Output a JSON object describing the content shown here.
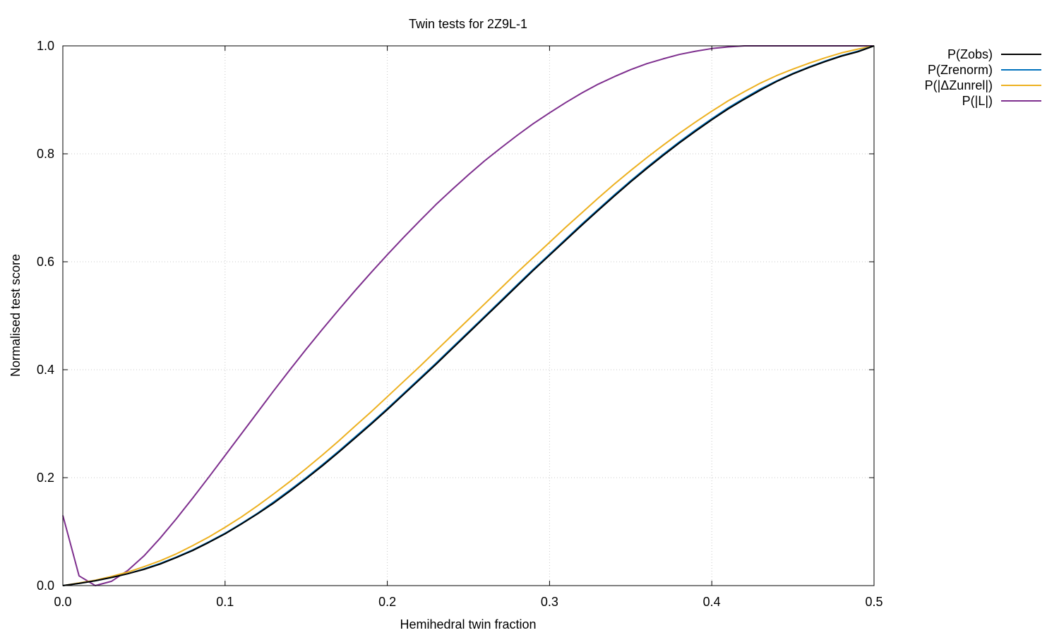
{
  "chart_data": {
    "type": "line",
    "title": "Twin tests for 2Z9L-1",
    "xlabel": "Hemihedral twin fraction",
    "ylabel": "Normalised test score",
    "xlim": [
      0.0,
      0.5
    ],
    "ylim": [
      0.0,
      1.0
    ],
    "xticks": [
      "0.0",
      "0.1",
      "0.2",
      "0.3",
      "0.4",
      "0.5"
    ],
    "yticks": [
      "0.0",
      "0.2",
      "0.4",
      "0.6",
      "0.8",
      "1.0"
    ],
    "grid": true,
    "legend_position": "outside-top-right",
    "x": [
      0.0,
      0.01,
      0.02,
      0.03,
      0.04,
      0.05,
      0.06,
      0.07,
      0.08,
      0.09,
      0.1,
      0.11,
      0.12,
      0.13,
      0.14,
      0.15,
      0.16,
      0.17,
      0.18,
      0.19,
      0.2,
      0.21,
      0.22,
      0.23,
      0.24,
      0.25,
      0.26,
      0.27,
      0.28,
      0.29,
      0.3,
      0.31,
      0.32,
      0.33,
      0.34,
      0.35,
      0.36,
      0.37,
      0.38,
      0.39,
      0.4,
      0.41,
      0.42,
      0.43,
      0.44,
      0.45,
      0.46,
      0.47,
      0.48,
      0.49,
      0.5
    ],
    "series": [
      {
        "name": "P(Zobs)",
        "color": "#000000",
        "values": [
          0.0,
          0.004,
          0.009,
          0.015,
          0.022,
          0.03,
          0.04,
          0.052,
          0.065,
          0.08,
          0.096,
          0.114,
          0.133,
          0.153,
          0.175,
          0.198,
          0.222,
          0.247,
          0.273,
          0.299,
          0.326,
          0.354,
          0.382,
          0.41,
          0.439,
          0.468,
          0.497,
          0.526,
          0.555,
          0.584,
          0.612,
          0.64,
          0.668,
          0.695,
          0.722,
          0.748,
          0.773,
          0.797,
          0.82,
          0.842,
          0.863,
          0.883,
          0.901,
          0.918,
          0.934,
          0.948,
          0.96,
          0.971,
          0.981,
          0.989,
          1.0
        ]
      },
      {
        "name": "P(Zrenorm)",
        "color": "#0072bd",
        "values": [
          0.0,
          0.004,
          0.009,
          0.015,
          0.022,
          0.031,
          0.041,
          0.053,
          0.066,
          0.081,
          0.097,
          0.115,
          0.134,
          0.155,
          0.177,
          0.2,
          0.224,
          0.249,
          0.275,
          0.301,
          0.328,
          0.356,
          0.384,
          0.412,
          0.441,
          0.47,
          0.499,
          0.528,
          0.557,
          0.586,
          0.614,
          0.642,
          0.67,
          0.697,
          0.724,
          0.75,
          0.775,
          0.799,
          0.822,
          0.844,
          0.865,
          0.885,
          0.903,
          0.92,
          0.935,
          0.949,
          0.961,
          0.972,
          0.982,
          0.99,
          1.0
        ]
      },
      {
        "name": "P(|ΔZunrel|)",
        "color": "#edb120",
        "values": [
          0.0,
          0.005,
          0.01,
          0.017,
          0.025,
          0.035,
          0.046,
          0.059,
          0.074,
          0.09,
          0.108,
          0.127,
          0.148,
          0.17,
          0.193,
          0.217,
          0.242,
          0.268,
          0.295,
          0.322,
          0.35,
          0.378,
          0.406,
          0.435,
          0.464,
          0.493,
          0.522,
          0.551,
          0.58,
          0.608,
          0.636,
          0.664,
          0.691,
          0.718,
          0.744,
          0.769,
          0.793,
          0.816,
          0.838,
          0.859,
          0.879,
          0.898,
          0.915,
          0.931,
          0.945,
          0.957,
          0.968,
          0.978,
          0.987,
          0.994,
          1.0
        ]
      },
      {
        "name": "P(|L|)",
        "color": "#7e2f8e",
        "values": [
          0.13,
          0.018,
          0.0,
          0.008,
          0.028,
          0.055,
          0.088,
          0.124,
          0.162,
          0.201,
          0.241,
          0.281,
          0.321,
          0.361,
          0.4,
          0.438,
          0.475,
          0.511,
          0.546,
          0.58,
          0.613,
          0.645,
          0.676,
          0.706,
          0.734,
          0.761,
          0.787,
          0.811,
          0.834,
          0.856,
          0.876,
          0.895,
          0.913,
          0.929,
          0.943,
          0.956,
          0.967,
          0.976,
          0.984,
          0.99,
          0.995,
          0.998,
          1.0,
          1.0,
          1.0,
          1.0,
          1.0,
          1.0,
          1.0,
          1.0,
          1.0
        ]
      }
    ]
  }
}
